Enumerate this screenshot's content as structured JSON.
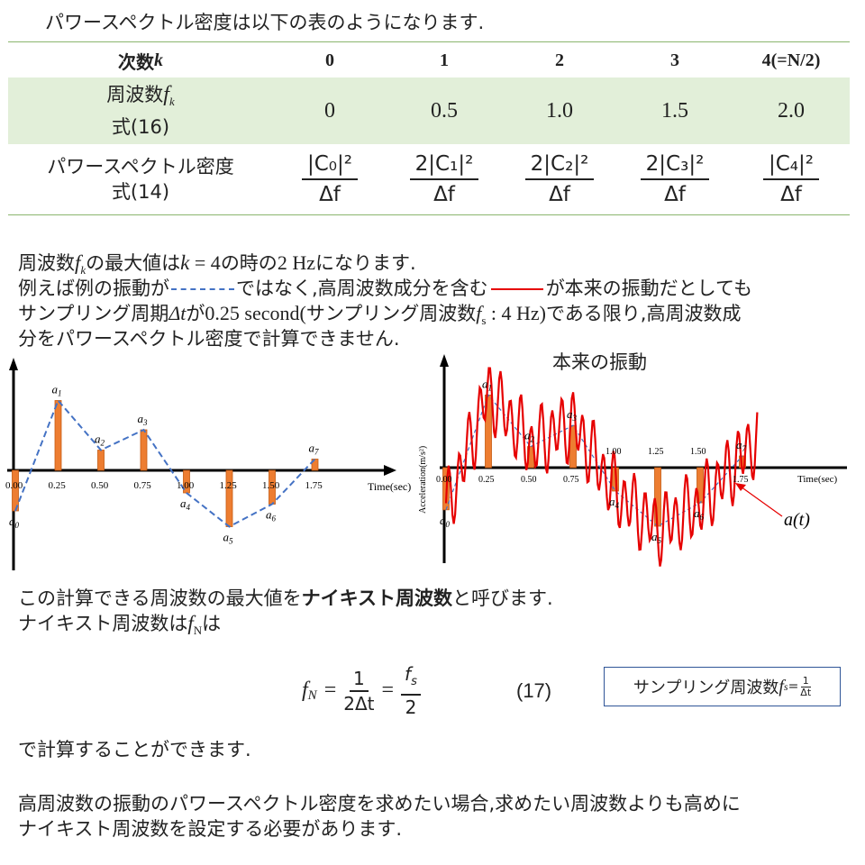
{
  "intro": "パワースペクトル密度は以下の表のようになります.",
  "table": {
    "header": [
      "次数",
      "k",
      "0",
      "1",
      "2",
      "3",
      "4(=N/2)"
    ],
    "freq_label_line1": "周波数",
    "freq_label_sym": "f",
    "freq_label_sub": "k",
    "freq_label_line2": "式(16)",
    "freq_values": [
      "0",
      "0.5",
      "1.0",
      "1.5",
      "2.0"
    ],
    "psd_label_line1": "パワースペクトル密度",
    "psd_label_line2": "式(14)",
    "psd_numerators": [
      "|C₀|²",
      "2|C₁|²",
      "2|C₂|²",
      "2|C₃|²",
      "|C₄|²"
    ],
    "psd_denominator": "Δf"
  },
  "para1": {
    "l1a": "周波数",
    "l1sym": "f",
    "l1sub": "k",
    "l1b": "の最大値は",
    "l1c": "k",
    "l1d": " = 4",
    "l1e": "の時の",
    "l1f": "2 Hz",
    "l1g": "になります.",
    "l2a": "例えば例の振動が",
    "l2b": "ではなく,高周波数成分を含む",
    "l2c": "が本来の振動だとしても",
    "l3a": "サンプリング周期",
    "l3b": "Δt",
    "l3c": "が",
    "l3d": "0.25 second(",
    "l3e": "サンプリング周波数",
    "l3f": "f",
    "l3g": "s",
    "l3h": " : 4 Hz)",
    "l3i": "である限り,高周波数成",
    "l4": "分をパワースペクトル密度で計算できません."
  },
  "chart_left": {
    "x_ticks": [
      "0.00",
      "0.25",
      "0.50",
      "0.75",
      "1.00",
      "1.25",
      "1.50",
      "1.75"
    ],
    "xlabel": "Time(sec)",
    "samples": [
      -0.9,
      1.55,
      0.45,
      0.9,
      -0.5,
      -1.25,
      -0.75,
      0.25
    ],
    "labels": [
      "a",
      "a",
      "a",
      "a",
      "a",
      "a",
      "a",
      "a"
    ],
    "subs": [
      "0",
      "1",
      "2",
      "3",
      "4",
      "5",
      "6",
      "7"
    ],
    "colors": {
      "bar": "#ed7d31",
      "dash": "#4472c4",
      "axis": "#000000"
    }
  },
  "chart_right": {
    "title": "本来の振動",
    "x_ticks": [
      "0.00",
      "0.25",
      "0.50",
      "0.75",
      "1.00",
      "1.25",
      "1.50",
      "1.75"
    ],
    "xlabel": "Time(sec)",
    "ylabel": "Acceleration(m/s²)",
    "signal_label": "a(t)",
    "samples": [
      -0.9,
      1.55,
      0.45,
      0.9,
      -0.5,
      -1.25,
      -0.75,
      0.25
    ],
    "subs": [
      "0",
      "1",
      "2",
      "3",
      "4",
      "5",
      "6",
      "7"
    ],
    "colors": {
      "signal": "#e60000",
      "bar": "#ed7d31",
      "dash": "#4472c4"
    }
  },
  "para2": {
    "l1a": "この計算できる周波数の最大値を",
    "l1b": "ナイキスト周波数",
    "l1c": "と呼びます.",
    "l2a": "ナイキスト周波数は",
    "l2sym": "f",
    "l2sub": "N",
    "l2b": "は"
  },
  "formula": {
    "lhs_sym": "f",
    "lhs_sub": "N",
    "eq1": "=",
    "f1_num": "1",
    "f1_den": "2Δt",
    "eq2": "=",
    "f2_num": "f",
    "f2_num_sub": "s",
    "f2_den": "2",
    "eq_number": "(17)"
  },
  "formula_box": {
    "text": "サンプリング周波数",
    "sym": "f",
    "sub": "s",
    "eq": "=",
    "num": "1",
    "den": "Δt"
  },
  "para3": "で計算することができます.",
  "para4_l1": "高周波数の振動のパワースペクトル密度を求めたい場合,求めたい周波数よりも高めに",
  "para4_l2": "ナイキスト周波数を設定する必要があります."
}
